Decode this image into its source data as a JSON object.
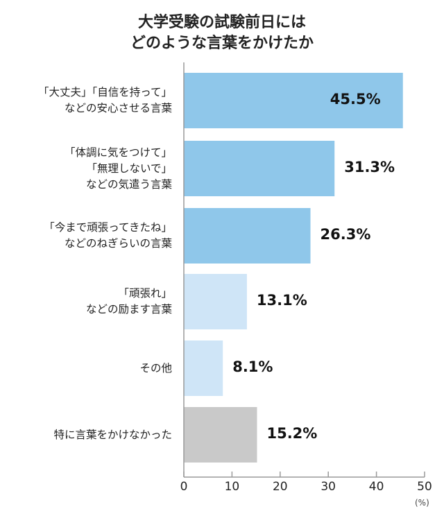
{
  "chart_data": {
    "type": "bar",
    "orientation": "horizontal",
    "title_lines": [
      "大学受験の試験前日には",
      "どのような言葉をかけたか"
    ],
    "categories": [
      [
        "「大丈夫」「自信を持って」",
        "などの安心させる言葉"
      ],
      [
        "「体調に気をつけて」",
        "「無理しないで」",
        "などの気遣う言葉"
      ],
      [
        "「今まで頑張ってきたね」",
        "などのねぎらいの言葉"
      ],
      [
        "「頑張れ」",
        "などの励ます言葉"
      ],
      [
        "その他"
      ],
      [
        "特に言葉をかけなかった"
      ]
    ],
    "values": [
      45.5,
      31.3,
      26.3,
      13.1,
      8.1,
      15.2
    ],
    "value_labels": [
      "45.5%",
      "31.3%",
      "26.3%",
      "13.1%",
      "8.1%",
      "15.2%"
    ],
    "colors": [
      "#8fc7ea",
      "#8fc7ea",
      "#8fc7ea",
      "#cfe5f7",
      "#cfe5f7",
      "#c9c9c9"
    ],
    "xlim": [
      0,
      50
    ],
    "xticks": [
      "0",
      "10",
      "20",
      "30",
      "40",
      "50"
    ],
    "xunit": "(%)",
    "grid": false
  }
}
